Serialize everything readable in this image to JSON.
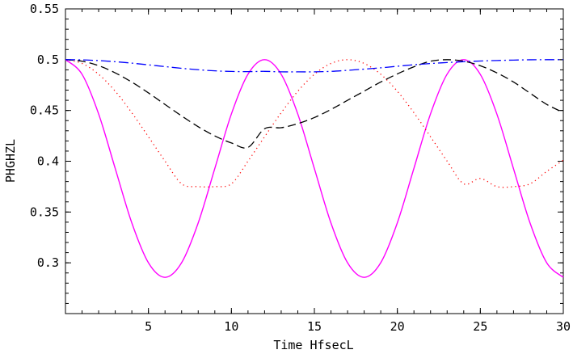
{
  "chart_data": {
    "type": "line",
    "title": "",
    "xlabel": "Time HfsecL",
    "ylabel": "PHGHZL",
    "xlim": [
      0,
      30
    ],
    "ylim": [
      0.25,
      0.55
    ],
    "x_ticks": [
      5,
      10,
      15,
      20,
      25,
      30
    ],
    "x_tick_labels": [
      "5",
      "10",
      "15",
      "20",
      "25",
      "30"
    ],
    "y_ticks": [
      0.3,
      0.35,
      0.4,
      0.45,
      0.5,
      0.55
    ],
    "y_tick_labels": [
      "0.3",
      "0.35",
      "0.4",
      "0.45",
      "0.5",
      "0.55"
    ],
    "grid": false,
    "legend": "none",
    "x": [
      0,
      1,
      2,
      3,
      4,
      5,
      6,
      7,
      8,
      9,
      10,
      11,
      12,
      13,
      14,
      15,
      16,
      17,
      18,
      19,
      20,
      21,
      22,
      23,
      24,
      25,
      26,
      27,
      28,
      29,
      30
    ],
    "series": [
      {
        "color": "#ff00ff",
        "style": "solid",
        "values": [
          0.5,
          0.4856,
          0.4465,
          0.3928,
          0.3392,
          0.3,
          0.2857,
          0.3001,
          0.3393,
          0.3929,
          0.4466,
          0.4857,
          0.5,
          0.4856,
          0.4465,
          0.3928,
          0.3391,
          0.3,
          0.2857,
          0.3001,
          0.3394,
          0.3931,
          0.4467,
          0.4858,
          0.5,
          0.4855,
          0.4463,
          0.3926,
          0.339,
          0.3,
          0.2857
        ]
      },
      {
        "color": "#ff0000",
        "style": "dotted",
        "values": [
          0.5,
          0.4963,
          0.4856,
          0.4689,
          0.4477,
          0.4241,
          0.4001,
          0.3778,
          0.375,
          0.375,
          0.3778,
          0.4001,
          0.4241,
          0.4477,
          0.4689,
          0.4856,
          0.4963,
          0.5,
          0.4963,
          0.4856,
          0.4689,
          0.4477,
          0.4241,
          0.4001,
          0.3778,
          0.383,
          0.375,
          0.375,
          0.3778,
          0.39,
          0.401
        ]
      },
      {
        "color": "#000000",
        "style": "dashed",
        "values": [
          0.5,
          0.4985,
          0.4941,
          0.487,
          0.4779,
          0.4673,
          0.4559,
          0.4446,
          0.434,
          0.4249,
          0.418,
          0.4136,
          0.432,
          0.433,
          0.437,
          0.443,
          0.451,
          0.46,
          0.469,
          0.478,
          0.486,
          0.493,
          0.4985,
          0.5,
          0.4985,
          0.494,
          0.487,
          0.478,
          0.467,
          0.456,
          0.448
        ]
      },
      {
        "color": "#0000ff",
        "style": "dashdot",
        "values": [
          0.5,
          0.4998,
          0.4991,
          0.498,
          0.4966,
          0.4949,
          0.4932,
          0.4915,
          0.4901,
          0.489,
          0.4884,
          0.4882,
          0.4885,
          0.488,
          0.488,
          0.488,
          0.4885,
          0.4895,
          0.4907,
          0.492,
          0.4935,
          0.495,
          0.4962,
          0.4972,
          0.498,
          0.4987,
          0.4992,
          0.4996,
          0.4999,
          0.5,
          0.5
        ]
      }
    ]
  }
}
